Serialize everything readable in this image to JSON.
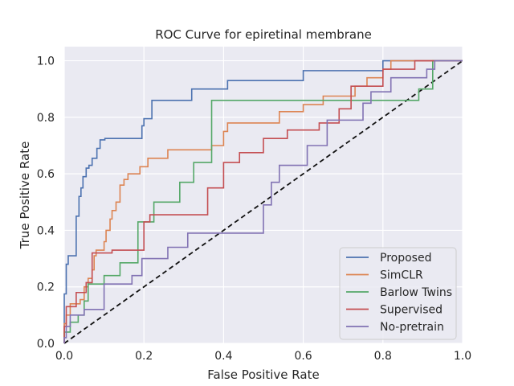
{
  "chart_data": {
    "type": "line",
    "title": "ROC Curve for epiretinal membrane",
    "xlabel": "False Positive Rate",
    "ylabel": "True Positive Rate",
    "xlim": [
      0.0,
      1.0
    ],
    "ylim": [
      0.0,
      1.05
    ],
    "xticks": [
      "0.0",
      "0.2",
      "0.4",
      "0.6",
      "0.8",
      "1.0"
    ],
    "yticks": [
      "0.0",
      "0.2",
      "0.4",
      "0.6",
      "0.8",
      "1.0"
    ],
    "grid": true,
    "background": "#eaeaf2",
    "legend_position": "lower-right",
    "series": [
      {
        "name": "Proposed",
        "color": "#4c72b0",
        "x": [
          0.0,
          0.0,
          0.005,
          0.005,
          0.01,
          0.01,
          0.03,
          0.03,
          0.037,
          0.037,
          0.042,
          0.042,
          0.047,
          0.047,
          0.055,
          0.055,
          0.062,
          0.062,
          0.07,
          0.07,
          0.082,
          0.082,
          0.09,
          0.09,
          0.102,
          0.102,
          0.195,
          0.195,
          0.2,
          0.2,
          0.22,
          0.22,
          0.32,
          0.32,
          0.41,
          0.41,
          0.6,
          0.6,
          0.8,
          0.8,
          1.0
        ],
        "y": [
          0.0,
          0.175,
          0.175,
          0.28,
          0.28,
          0.31,
          0.31,
          0.45,
          0.45,
          0.52,
          0.52,
          0.55,
          0.55,
          0.59,
          0.59,
          0.62,
          0.62,
          0.63,
          0.63,
          0.655,
          0.655,
          0.69,
          0.69,
          0.72,
          0.72,
          0.725,
          0.725,
          0.77,
          0.77,
          0.795,
          0.795,
          0.86,
          0.86,
          0.9,
          0.9,
          0.93,
          0.93,
          0.965,
          0.965,
          1.0,
          1.0
        ]
      },
      {
        "name": "SimCLR",
        "color": "#dd8452",
        "x": [
          0.0,
          0.0,
          0.005,
          0.005,
          0.015,
          0.015,
          0.04,
          0.04,
          0.05,
          0.05,
          0.06,
          0.06,
          0.07,
          0.07,
          0.075,
          0.075,
          0.08,
          0.08,
          0.1,
          0.1,
          0.105,
          0.105,
          0.115,
          0.115,
          0.12,
          0.12,
          0.13,
          0.13,
          0.14,
          0.14,
          0.15,
          0.15,
          0.16,
          0.16,
          0.19,
          0.19,
          0.21,
          0.21,
          0.26,
          0.26,
          0.37,
          0.37,
          0.4,
          0.4,
          0.41,
          0.41,
          0.54,
          0.54,
          0.6,
          0.6,
          0.65,
          0.65,
          0.73,
          0.73,
          0.76,
          0.76,
          0.8,
          0.8,
          0.82,
          0.82,
          1.0
        ],
        "y": [
          0.0,
          0.07,
          0.07,
          0.1,
          0.1,
          0.14,
          0.14,
          0.155,
          0.155,
          0.2,
          0.2,
          0.23,
          0.23,
          0.26,
          0.26,
          0.31,
          0.31,
          0.33,
          0.33,
          0.36,
          0.36,
          0.4,
          0.4,
          0.44,
          0.44,
          0.47,
          0.47,
          0.5,
          0.5,
          0.56,
          0.56,
          0.58,
          0.58,
          0.6,
          0.6,
          0.625,
          0.625,
          0.655,
          0.655,
          0.685,
          0.685,
          0.7,
          0.7,
          0.75,
          0.75,
          0.78,
          0.78,
          0.82,
          0.82,
          0.845,
          0.845,
          0.875,
          0.875,
          0.91,
          0.91,
          0.94,
          0.94,
          0.97,
          0.97,
          1.0,
          1.0
        ]
      },
      {
        "name": "Barlow Twins",
        "color": "#55a868",
        "x": [
          0.0,
          0.0,
          0.015,
          0.015,
          0.035,
          0.035,
          0.05,
          0.05,
          0.06,
          0.06,
          0.1,
          0.1,
          0.14,
          0.14,
          0.185,
          0.185,
          0.225,
          0.225,
          0.29,
          0.29,
          0.325,
          0.325,
          0.37,
          0.37,
          0.89,
          0.89,
          0.925,
          0.925,
          1.0
        ],
        "y": [
          0.0,
          0.04,
          0.04,
          0.075,
          0.075,
          0.1,
          0.1,
          0.15,
          0.15,
          0.21,
          0.21,
          0.24,
          0.24,
          0.285,
          0.285,
          0.43,
          0.43,
          0.5,
          0.5,
          0.57,
          0.57,
          0.64,
          0.64,
          0.86,
          0.86,
          0.9,
          0.9,
          1.0,
          1.0
        ]
      },
      {
        "name": "Supervised",
        "color": "#c44e52",
        "x": [
          0.0,
          0.0,
          0.005,
          0.005,
          0.03,
          0.03,
          0.055,
          0.055,
          0.07,
          0.07,
          0.12,
          0.12,
          0.2,
          0.2,
          0.215,
          0.215,
          0.36,
          0.36,
          0.4,
          0.4,
          0.44,
          0.44,
          0.5,
          0.5,
          0.56,
          0.56,
          0.64,
          0.64,
          0.69,
          0.69,
          0.72,
          0.72,
          0.8,
          0.8,
          0.88,
          0.88,
          0.925,
          0.925,
          1.0
        ],
        "y": [
          0.0,
          0.06,
          0.06,
          0.13,
          0.13,
          0.18,
          0.18,
          0.215,
          0.215,
          0.32,
          0.32,
          0.33,
          0.33,
          0.43,
          0.43,
          0.455,
          0.455,
          0.55,
          0.55,
          0.64,
          0.64,
          0.675,
          0.675,
          0.725,
          0.725,
          0.755,
          0.755,
          0.78,
          0.78,
          0.83,
          0.83,
          0.91,
          0.91,
          0.97,
          0.97,
          1.0,
          1.0,
          1.0,
          1.0
        ]
      },
      {
        "name": "No-pretrain",
        "color": "#8172b3",
        "x": [
          0.0,
          0.0,
          0.005,
          0.005,
          0.015,
          0.015,
          0.03,
          0.03,
          0.05,
          0.05,
          0.06,
          0.06,
          0.1,
          0.1,
          0.17,
          0.17,
          0.195,
          0.195,
          0.26,
          0.26,
          0.31,
          0.31,
          0.5,
          0.5,
          0.52,
          0.52,
          0.54,
          0.54,
          0.61,
          0.61,
          0.66,
          0.66,
          0.75,
          0.75,
          0.77,
          0.77,
          0.82,
          0.82,
          0.91,
          0.91,
          0.93,
          0.93,
          1.0
        ],
        "y": [
          0.0,
          0.02,
          0.02,
          0.06,
          0.06,
          0.1,
          0.1,
          0.1,
          0.1,
          0.12,
          0.12,
          0.12,
          0.12,
          0.21,
          0.21,
          0.24,
          0.24,
          0.3,
          0.3,
          0.34,
          0.34,
          0.39,
          0.39,
          0.49,
          0.49,
          0.57,
          0.57,
          0.63,
          0.63,
          0.7,
          0.7,
          0.79,
          0.79,
          0.85,
          0.85,
          0.89,
          0.89,
          0.94,
          0.94,
          0.97,
          0.97,
          1.0,
          1.0
        ]
      }
    ],
    "reference_line": {
      "x": [
        0.0,
        1.0
      ],
      "y": [
        0.0,
        1.0
      ],
      "color": "#111111",
      "style": "dashed"
    }
  }
}
